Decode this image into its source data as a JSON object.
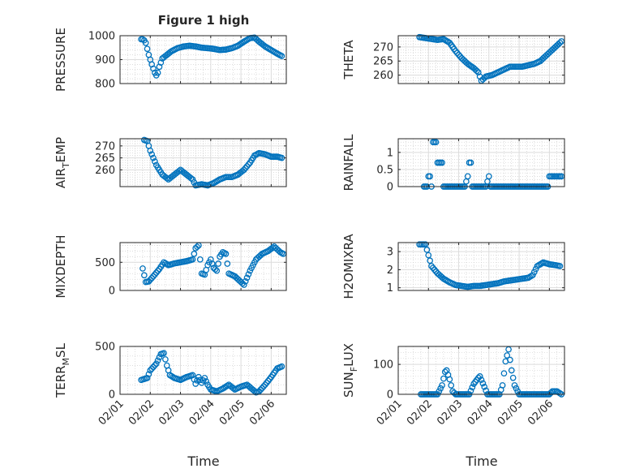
{
  "figure": {
    "title": "Figure 1 high",
    "xlabel": "Time"
  },
  "colors": {
    "marker": "#0072bd",
    "axes": "#262626",
    "grid": "#dcdcdc",
    "background": "#ffffff"
  },
  "chart_data": [
    {
      "type": "scatter",
      "id": "pressure",
      "row": 0,
      "col": 0,
      "title": "Figure 1 high",
      "ylabel_parts": [
        "PRESSURE"
      ],
      "ylim": [
        800,
        1000
      ],
      "yticks": [
        800,
        900,
        1000
      ],
      "xticks": [
        "02/01",
        "02/02",
        "02/03",
        "02/04",
        "02/05",
        "02/06"
      ],
      "xlabel": "",
      "grid": true,
      "series": [
        {
          "keypoints": [
            [
              0.7,
              985
            ],
            [
              0.78,
              985
            ],
            [
              0.85,
              970
            ],
            [
              0.95,
              920
            ],
            [
              1.05,
              880
            ],
            [
              1.15,
              845
            ],
            [
              1.22,
              830
            ],
            [
              1.3,
              870
            ],
            [
              1.4,
              905
            ],
            [
              1.55,
              920
            ],
            [
              1.7,
              935
            ],
            [
              1.9,
              948
            ],
            [
              2.1,
              955
            ],
            [
              2.3,
              958
            ],
            [
              2.5,
              955
            ],
            [
              2.7,
              950
            ],
            [
              2.9,
              948
            ],
            [
              3.1,
              945
            ],
            [
              3.3,
              940
            ],
            [
              3.5,
              942
            ],
            [
              3.7,
              948
            ],
            [
              3.9,
              958
            ],
            [
              4.1,
              975
            ],
            [
              4.3,
              990
            ],
            [
              4.45,
              992
            ],
            [
              4.6,
              975
            ],
            [
              4.8,
              955
            ],
            [
              5.0,
              940
            ],
            [
              5.2,
              925
            ],
            [
              5.35,
              915
            ]
          ],
          "step": 0.05
        }
      ]
    },
    {
      "type": "scatter",
      "id": "theta",
      "row": 0,
      "col": 1,
      "title": "",
      "ylabel_parts": [
        "THETA"
      ],
      "ylim": [
        257,
        274
      ],
      "yticks": [
        260,
        265,
        270
      ],
      "xticks": [
        "02/01",
        "02/02",
        "02/03",
        "02/04",
        "02/05",
        "02/06"
      ],
      "xlabel": "",
      "grid": true,
      "series": [
        {
          "keypoints": [
            [
              0.7,
              273.5
            ],
            [
              1.0,
              273
            ],
            [
              1.3,
              272.5
            ],
            [
              1.5,
              272.8
            ],
            [
              1.7,
              271.5
            ],
            [
              1.9,
              268.5
            ],
            [
              2.1,
              266
            ],
            [
              2.3,
              264
            ],
            [
              2.5,
              262.5
            ],
            [
              2.65,
              261
            ],
            [
              2.75,
              258
            ],
            [
              2.9,
              259.5
            ],
            [
              3.1,
              260
            ],
            [
              3.3,
              261
            ],
            [
              3.5,
              262
            ],
            [
              3.7,
              263
            ],
            [
              3.9,
              263
            ],
            [
              4.1,
              263
            ],
            [
              4.3,
              263.5
            ],
            [
              4.5,
              264
            ],
            [
              4.7,
              265
            ],
            [
              4.9,
              267
            ],
            [
              5.1,
              269
            ],
            [
              5.3,
              271
            ],
            [
              5.4,
              272
            ]
          ],
          "step": 0.05
        }
      ]
    },
    {
      "type": "scatter",
      "id": "air-temp",
      "row": 1,
      "col": 0,
      "title": "",
      "ylabel_parts": [
        "AIR",
        "T",
        "EMP"
      ],
      "ylim": [
        253,
        273
      ],
      "yticks": [
        260,
        265,
        270
      ],
      "xticks": [
        "02/01",
        "02/02",
        "02/03",
        "02/04",
        "02/05",
        "02/06"
      ],
      "xlabel": "",
      "grid": true,
      "series": [
        {
          "keypoints": [
            [
              0.8,
              272.5
            ],
            [
              0.9,
              272
            ],
            [
              1.0,
              268
            ],
            [
              1.2,
              262
            ],
            [
              1.4,
              258
            ],
            [
              1.6,
              256
            ],
            [
              1.8,
              258
            ],
            [
              2.0,
              260
            ],
            [
              2.2,
              258
            ],
            [
              2.4,
              256
            ],
            [
              2.5,
              253.5
            ],
            [
              2.7,
              254
            ],
            [
              2.9,
              253.5
            ],
            [
              3.1,
              254.5
            ],
            [
              3.3,
              256
            ],
            [
              3.5,
              257
            ],
            [
              3.7,
              257
            ],
            [
              3.9,
              258
            ],
            [
              4.1,
              260
            ],
            [
              4.3,
              263
            ],
            [
              4.45,
              266
            ],
            [
              4.6,
              267
            ],
            [
              4.8,
              266.5
            ],
            [
              5.0,
              265.5
            ],
            [
              5.2,
              265.5
            ],
            [
              5.35,
              265
            ]
          ],
          "step": 0.05
        }
      ]
    },
    {
      "type": "scatter",
      "id": "rainfall",
      "row": 1,
      "col": 1,
      "title": "",
      "ylabel_parts": [
        "RAINFALL"
      ],
      "ylim": [
        0,
        1.4
      ],
      "yticks": [
        0,
        0.5,
        1
      ],
      "xticks": [
        "02/01",
        "02/02",
        "02/03",
        "02/04",
        "02/05",
        "02/06"
      ],
      "xlabel": "",
      "grid": true,
      "series": [
        {
          "keypoints": [
            [
              0.85,
              0
            ],
            [
              0.95,
              0
            ],
            [
              1.0,
              0.3
            ],
            [
              1.05,
              0.3
            ],
            [
              1.1,
              0
            ],
            [
              1.15,
              1.3
            ],
            [
              1.2,
              1.3
            ],
            [
              1.25,
              1.3
            ],
            [
              1.3,
              0.7
            ],
            [
              1.35,
              0.7
            ],
            [
              1.4,
              0.7
            ],
            [
              1.45,
              0.7
            ],
            [
              1.5,
              0
            ],
            [
              2.2,
              0
            ],
            [
              2.3,
              0.3
            ],
            [
              2.35,
              0.7
            ],
            [
              2.4,
              0.7
            ],
            [
              2.45,
              0
            ],
            [
              2.9,
              0
            ],
            [
              3.0,
              0.3
            ],
            [
              3.05,
              0
            ],
            [
              3.7,
              0
            ],
            [
              4.5,
              0
            ],
            [
              4.95,
              0
            ],
            [
              5.0,
              0.3
            ],
            [
              5.05,
              0.3
            ],
            [
              5.4,
              0.3
            ]
          ],
          "step": 0.05
        }
      ]
    },
    {
      "type": "scatter",
      "id": "mixdepth",
      "row": 2,
      "col": 0,
      "title": "",
      "ylabel_parts": [
        "MIXDEPTH"
      ],
      "ylim": [
        0,
        850
      ],
      "yticks": [
        0,
        500
      ],
      "xticks": [
        "02/01",
        "02/02",
        "02/03",
        "02/04",
        "02/05",
        "02/06"
      ],
      "xlabel": "",
      "grid": true,
      "series": [
        {
          "keypoints": [
            [
              0.75,
              390
            ],
            [
              0.85,
              150
            ],
            [
              0.95,
              160
            ],
            [
              1.1,
              250
            ],
            [
              1.3,
              380
            ],
            [
              1.45,
              500
            ],
            [
              1.6,
              450
            ],
            [
              1.8,
              480
            ],
            [
              2.0,
              500
            ],
            [
              2.2,
              520
            ],
            [
              2.4,
              550
            ],
            [
              2.5,
              750
            ],
            [
              2.6,
              800
            ],
            [
              2.7,
              300
            ],
            [
              2.8,
              280
            ],
            [
              2.9,
              450
            ],
            [
              3.0,
              550
            ],
            [
              3.1,
              400
            ],
            [
              3.2,
              350
            ],
            [
              3.3,
              600
            ],
            [
              3.4,
              680
            ],
            [
              3.5,
              650
            ],
            [
              3.6,
              300
            ],
            [
              3.8,
              250
            ],
            [
              4.0,
              150
            ],
            [
              4.1,
              100
            ],
            [
              4.3,
              350
            ],
            [
              4.5,
              550
            ],
            [
              4.7,
              650
            ],
            [
              4.9,
              700
            ],
            [
              5.1,
              780
            ],
            [
              5.3,
              680
            ],
            [
              5.4,
              650
            ]
          ],
          "step": 0.05
        }
      ]
    },
    {
      "type": "scatter",
      "id": "h2omixra",
      "row": 2,
      "col": 1,
      "title": "",
      "ylabel_parts": [
        "H2OMIXRA"
      ],
      "ylim": [
        0.85,
        3.5
      ],
      "yticks": [
        1,
        2,
        3
      ],
      "xticks": [
        "02/01",
        "02/02",
        "02/03",
        "02/04",
        "02/05",
        "02/06"
      ],
      "xlabel": "",
      "grid": true,
      "series": [
        {
          "keypoints": [
            [
              0.7,
              3.4
            ],
            [
              0.9,
              3.4
            ],
            [
              1.0,
              2.8
            ],
            [
              1.1,
              2.2
            ],
            [
              1.3,
              1.8
            ],
            [
              1.5,
              1.5
            ],
            [
              1.7,
              1.3
            ],
            [
              1.9,
              1.15
            ],
            [
              2.1,
              1.1
            ],
            [
              2.3,
              1.05
            ],
            [
              2.5,
              1.1
            ],
            [
              2.7,
              1.1
            ],
            [
              2.9,
              1.15
            ],
            [
              3.1,
              1.2
            ],
            [
              3.3,
              1.25
            ],
            [
              3.5,
              1.35
            ],
            [
              3.7,
              1.4
            ],
            [
              3.9,
              1.45
            ],
            [
              4.1,
              1.5
            ],
            [
              4.3,
              1.55
            ],
            [
              4.45,
              1.7
            ],
            [
              4.6,
              2.2
            ],
            [
              4.8,
              2.4
            ],
            [
              5.0,
              2.3
            ],
            [
              5.2,
              2.25
            ],
            [
              5.35,
              2.2
            ]
          ],
          "step": 0.05
        }
      ]
    },
    {
      "type": "scatter",
      "id": "terr-msl",
      "row": 3,
      "col": 0,
      "title": "",
      "ylabel_parts": [
        "TERR",
        "M",
        "SL"
      ],
      "ylim": [
        0,
        500
      ],
      "yticks": [
        0,
        500
      ],
      "xticks": [
        "02/01",
        "02/02",
        "02/03",
        "02/04",
        "02/05",
        "02/06"
      ],
      "xlabel": "Time",
      "grid": true,
      "series": [
        {
          "keypoints": [
            [
              0.7,
              150
            ],
            [
              0.9,
              170
            ],
            [
              1.0,
              250
            ],
            [
              1.2,
              320
            ],
            [
              1.35,
              420
            ],
            [
              1.45,
              430
            ],
            [
              1.55,
              300
            ],
            [
              1.65,
              200
            ],
            [
              1.8,
              170
            ],
            [
              2.0,
              150
            ],
            [
              2.2,
              180
            ],
            [
              2.4,
              200
            ],
            [
              2.5,
              110
            ],
            [
              2.6,
              180
            ],
            [
              2.7,
              120
            ],
            [
              2.8,
              170
            ],
            [
              2.9,
              100
            ],
            [
              3.0,
              50
            ],
            [
              3.2,
              30
            ],
            [
              3.4,
              60
            ],
            [
              3.6,
              100
            ],
            [
              3.8,
              50
            ],
            [
              4.0,
              80
            ],
            [
              4.2,
              100
            ],
            [
              4.35,
              60
            ],
            [
              4.5,
              20
            ],
            [
              4.6,
              30
            ],
            [
              4.8,
              100
            ],
            [
              5.0,
              180
            ],
            [
              5.2,
              270
            ],
            [
              5.35,
              290
            ]
          ],
          "step": 0.05
        }
      ]
    },
    {
      "type": "scatter",
      "id": "sun-flux",
      "row": 3,
      "col": 1,
      "title": "",
      "ylabel_parts": [
        "SUN",
        "F",
        "LUX"
      ],
      "ylim": [
        0,
        160
      ],
      "yticks": [
        0,
        100
      ],
      "xticks": [
        "02/01",
        "02/02",
        "02/03",
        "02/04",
        "02/05",
        "02/06"
      ],
      "xlabel": "Time",
      "grid": true,
      "series": [
        {
          "keypoints": [
            [
              0.75,
              0
            ],
            [
              1.3,
              0
            ],
            [
              1.45,
              30
            ],
            [
              1.55,
              75
            ],
            [
              1.6,
              80
            ],
            [
              1.7,
              50
            ],
            [
              1.8,
              10
            ],
            [
              1.9,
              0
            ],
            [
              2.35,
              0
            ],
            [
              2.5,
              35
            ],
            [
              2.65,
              55
            ],
            [
              2.7,
              60
            ],
            [
              2.85,
              25
            ],
            [
              2.95,
              0
            ],
            [
              3.35,
              0
            ],
            [
              3.45,
              30
            ],
            [
              3.55,
              110
            ],
            [
              3.65,
              150
            ],
            [
              3.75,
              80
            ],
            [
              3.85,
              30
            ],
            [
              4.0,
              0
            ],
            [
              5.0,
              0
            ],
            [
              5.1,
              10
            ],
            [
              5.25,
              10
            ],
            [
              5.4,
              0
            ]
          ],
          "step": 0.05
        }
      ]
    }
  ]
}
